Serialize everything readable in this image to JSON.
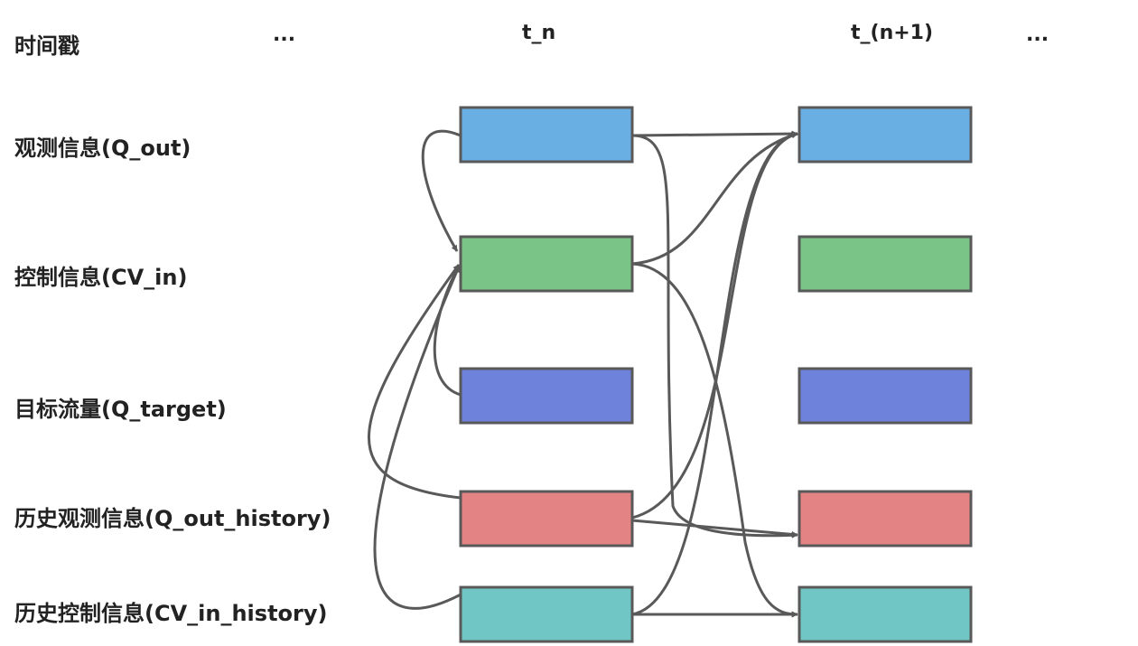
{
  "row_header": "时间戳",
  "column_headers": [
    "...",
    "t_n",
    "t_(n+1)",
    "..."
  ],
  "rows": [
    {
      "label": "观测信息(Q_out)",
      "color": "#6aafe3"
    },
    {
      "label": "控制信息(CV_in)",
      "color": "#79c486"
    },
    {
      "label": "目标流量(Q_target)",
      "color": "#6f82db"
    },
    {
      "label": "历史观测信息(Q_out_history)",
      "color": "#e48383"
    },
    {
      "label": "历史控制信息(CV_in_history)",
      "color": "#6fc6c4"
    }
  ],
  "edge_color": "#595959",
  "box_border_color": "#595959",
  "connections": [
    {
      "from": "t_n.观测信息(Q_out)",
      "to": "t_n.控制信息(CV_in)"
    },
    {
      "from": "t_n.目标流量(Q_target)",
      "to": "t_n.控制信息(CV_in)"
    },
    {
      "from": "t_n.历史观测信息(Q_out_history)",
      "to": "t_n.控制信息(CV_in)"
    },
    {
      "from": "t_n.历史控制信息(CV_in_history)",
      "to": "t_n.控制信息(CV_in)"
    },
    {
      "from": "t_n.观测信息(Q_out)",
      "to": "t_(n+1).观测信息(Q_out)"
    },
    {
      "from": "t_n.控制信息(CV_in)",
      "to": "t_(n+1).观测信息(Q_out)"
    },
    {
      "from": "t_n.历史观测信息(Q_out_history)",
      "to": "t_(n+1).观测信息(Q_out)"
    },
    {
      "from": "t_n.历史控制信息(CV_in_history)",
      "to": "t_(n+1).观测信息(Q_out)"
    },
    {
      "from": "t_n.观测信息(Q_out)",
      "to": "t_(n+1).历史观测信息(Q_out_history)"
    },
    {
      "from": "t_n.历史观测信息(Q_out_history)",
      "to": "t_(n+1).历史观测信息(Q_out_history)"
    },
    {
      "from": "t_n.控制信息(CV_in)",
      "to": "t_(n+1).历史控制信息(CV_in_history)"
    },
    {
      "from": "t_n.历史控制信息(CV_in_history)",
      "to": "t_(n+1).历史控制信息(CV_in_history)"
    }
  ]
}
